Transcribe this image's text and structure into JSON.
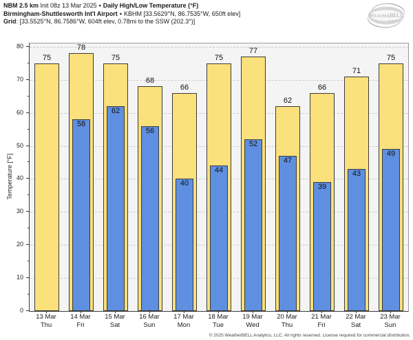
{
  "header": {
    "model": "NBM 2.5 km",
    "init": "Init 08z 13 Mar 2025",
    "separator": "•",
    "product": "Daily High/Low Temperature (°F)",
    "station_name": "Birmingham-Shuttlesworth Int'l Airport",
    "station_info": "KBHM [33.5629°N, 86.7535°W, 650ft elev]",
    "grid_label": "Grid",
    "grid_info": ": [33.5525°N, 86.7586°W, 604ft elev, 0.78mi to the SSW (202.3°)]"
  },
  "logo": {
    "text": "WeatherBELL",
    "tagline": "Analytics LLC"
  },
  "chart_data": {
    "type": "bar",
    "title": "NBM 2.5 km Init 08z 13 Mar 2025 • Daily High/Low Temperature (°F)",
    "subtitle": "Birmingham-Shuttlesworth Int'l Airport • KBHM [33.5629°N, 86.7535°W, 650ft elev]",
    "ylabel": "Temperature [°F]",
    "ylim": [
      0,
      81
    ],
    "yticks": [
      0,
      10,
      20,
      30,
      40,
      50,
      60,
      70,
      80
    ],
    "grid": "horizontal-dashed",
    "legend": "none",
    "categories": [
      {
        "date": "13 Mar",
        "day": "Thu"
      },
      {
        "date": "14 Mar",
        "day": "Fri"
      },
      {
        "date": "15 Mar",
        "day": "Sat"
      },
      {
        "date": "16 Mar",
        "day": "Sun"
      },
      {
        "date": "17 Mar",
        "day": "Mon"
      },
      {
        "date": "18 Mar",
        "day": "Tue"
      },
      {
        "date": "19 Mar",
        "day": "Wed"
      },
      {
        "date": "20 Mar",
        "day": "Thu"
      },
      {
        "date": "21 Mar",
        "day": "Fri"
      },
      {
        "date": "22 Mar",
        "day": "Sat"
      },
      {
        "date": "23 Mar",
        "day": "Sun"
      }
    ],
    "series": [
      {
        "name": "Daily High",
        "color": "#fbe17b",
        "values": [
          75,
          78,
          75,
          68,
          66,
          75,
          77,
          62,
          66,
          71,
          75
        ]
      },
      {
        "name": "Daily Low",
        "color": "#5f8fe0",
        "values": [
          null,
          58,
          62,
          56,
          40,
          44,
          52,
          47,
          39,
          43,
          49
        ]
      }
    ],
    "bar_border_color": "#3a3a3a",
    "plot_background": "#f4f4f4"
  },
  "footer": {
    "copyright": "© 2025 WeatherBELL Analytics, LLC. All rights reserved. License required for commercial distribution."
  }
}
